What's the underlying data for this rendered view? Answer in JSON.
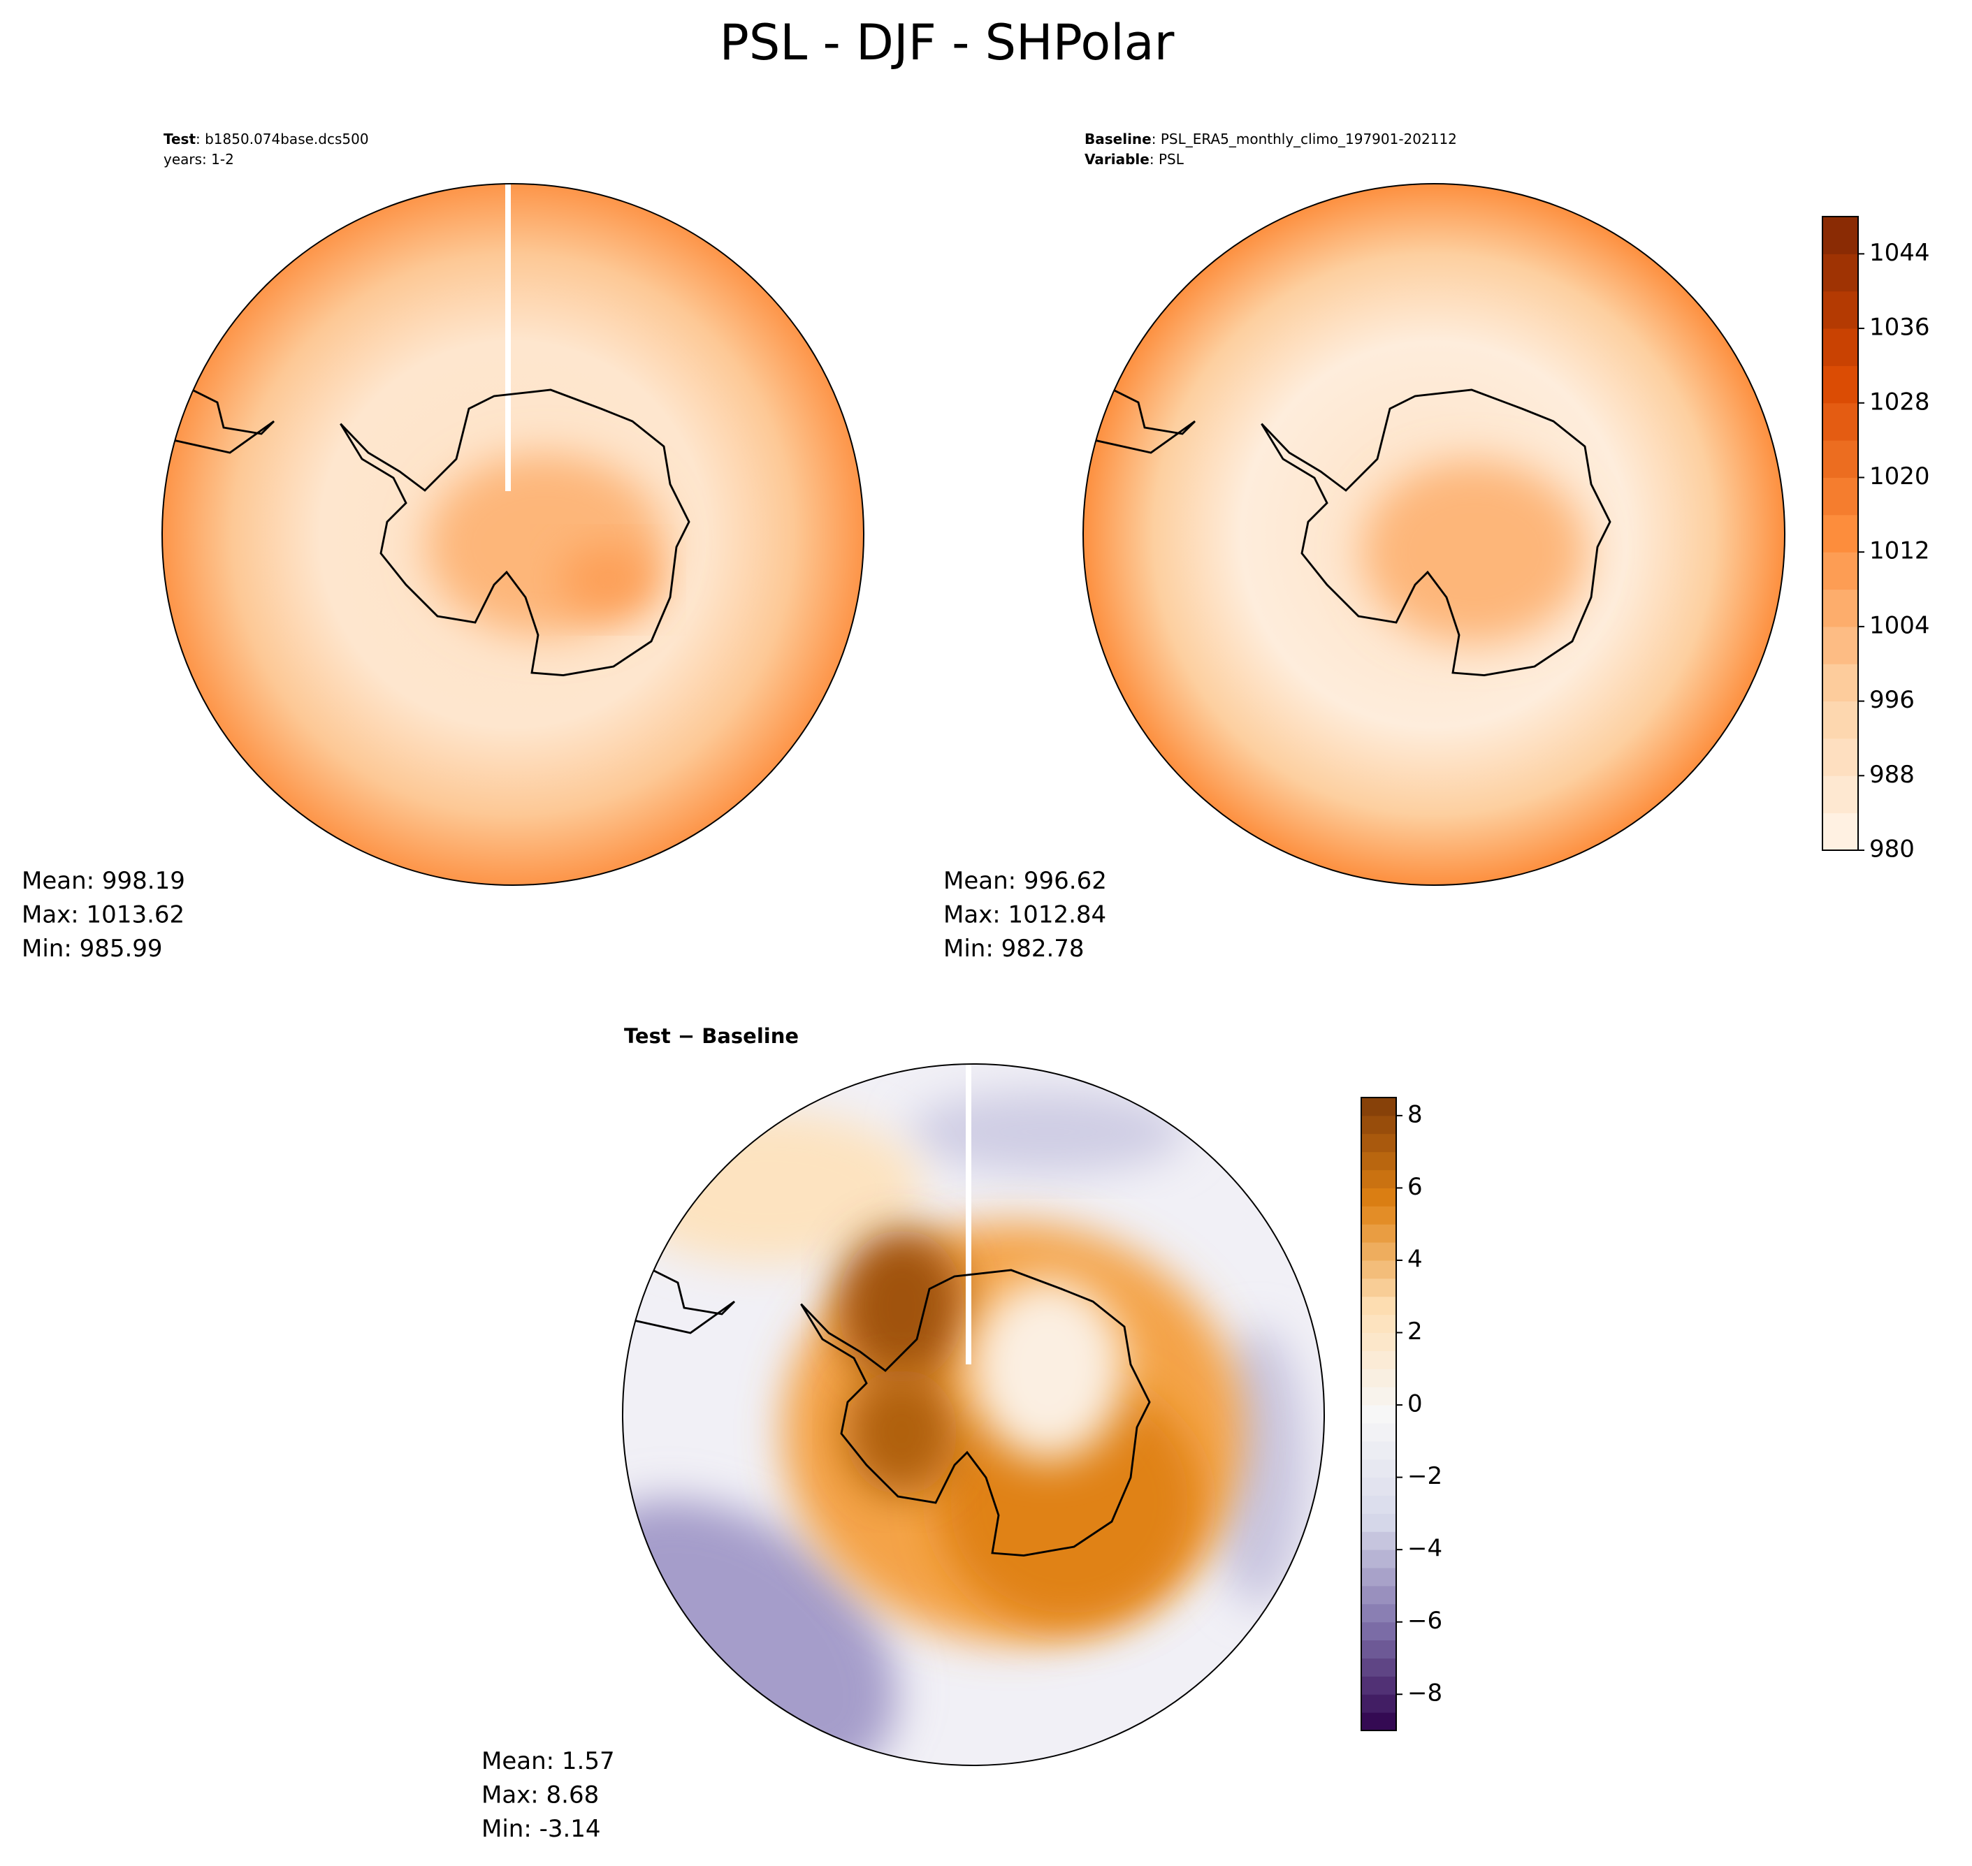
{
  "title": "PSL - DJF - SHPolar",
  "chart_data": [
    {
      "type": "contour-map",
      "label": "Test",
      "value": ": b1850.074base.dcs500",
      "subtitle": "years: 1-2",
      "stats": [
        "Mean: 998.19",
        "Max: 1013.62",
        "Min: 985.99"
      ]
    },
    {
      "type": "contour-map",
      "label": "Baseline",
      "value": ": PSL_ERA5_monthly_climo_197901-202112",
      "label2": "Variable",
      "value2": ": PSL",
      "stats": [
        "Mean: 996.62",
        "Max: 1012.84",
        "Min: 982.78"
      ],
      "clim": [
        980,
        1048
      ],
      "level_step": 4,
      "cticks": [
        980,
        988,
        996,
        1004,
        1012,
        1020,
        1028,
        1036,
        1044
      ],
      "cmap": [
        "#fff5eb",
        "#fdd0a2",
        "#fd8d3c",
        "#d94801",
        "#7f2704"
      ]
    },
    {
      "type": "contour-map",
      "title": "Test − Baseline",
      "stats": [
        "Mean:  1.57",
        "Max:  8.68",
        "Min: -3.14"
      ],
      "clim": [
        -9,
        8.5
      ],
      "level_step": 0.5,
      "cticks": [
        {
          "value": -8,
          "label": "−8"
        },
        {
          "value": -6,
          "label": "−6"
        },
        {
          "value": -4,
          "label": "−4"
        },
        {
          "value": -2,
          "label": "−2"
        },
        0,
        2,
        4,
        6,
        8
      ],
      "cmap": [
        "#2d004b",
        "#8073ac",
        "#d8daeb",
        "#f7f7f7",
        "#fee0b6",
        "#e08214",
        "#7f3b08"
      ]
    }
  ]
}
